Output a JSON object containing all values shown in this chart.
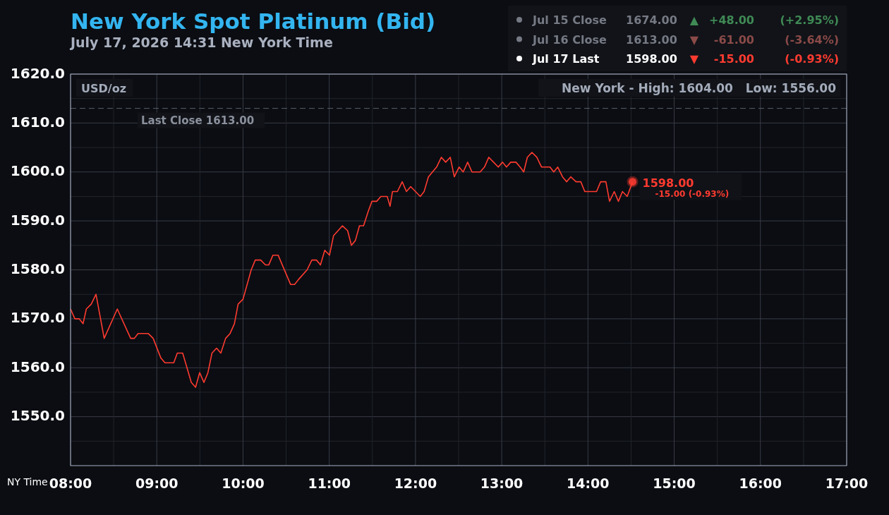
{
  "chart_data": {
    "type": "line",
    "title": "New York Spot Platinum (Bid)",
    "subtitle": "July 17, 2026 14:31 New York Time",
    "xlabel": "NY Time",
    "xlim": [
      8,
      17
    ],
    "xticks": [
      {
        "value": 8,
        "label": "08:00"
      },
      {
        "value": 8.5,
        "label": null
      },
      {
        "value": 9,
        "label": "09:00"
      },
      {
        "value": 9.5,
        "label": null
      },
      {
        "value": 10,
        "label": "10:00"
      },
      {
        "value": 10.5,
        "label": null
      },
      {
        "value": 11,
        "label": "11:00"
      },
      {
        "value": 11.5,
        "label": null
      },
      {
        "value": 12,
        "label": "12:00"
      },
      {
        "value": 12.5,
        "label": null
      },
      {
        "value": 13,
        "label": "13:00"
      },
      {
        "value": 13.5,
        "label": null
      },
      {
        "value": 14,
        "label": "14:00"
      },
      {
        "value": 14.5,
        "label": null
      },
      {
        "value": 15,
        "label": "15:00"
      },
      {
        "value": 15.5,
        "label": null
      },
      {
        "value": 16,
        "label": "16:00"
      },
      {
        "value": 16.5,
        "label": null
      },
      {
        "value": 17,
        "label": "17:00"
      }
    ],
    "ylim": [
      1540,
      1620
    ],
    "yticks": [
      {
        "value": 1545,
        "label": null
      },
      {
        "value": 1550,
        "label": "1550.0"
      },
      {
        "value": 1555,
        "label": null
      },
      {
        "value": 1560,
        "label": "1560.0"
      },
      {
        "value": 1565,
        "label": null
      },
      {
        "value": 1570,
        "label": "1570.0"
      },
      {
        "value": 1575,
        "label": null
      },
      {
        "value": 1580,
        "label": "1580.0"
      },
      {
        "value": 1585,
        "label": null
      },
      {
        "value": 1590,
        "label": "1590.0"
      },
      {
        "value": 1595,
        "label": null
      },
      {
        "value": 1600,
        "label": "1600.0"
      },
      {
        "value": 1605,
        "label": null
      },
      {
        "value": 1610,
        "label": "1610.0"
      },
      {
        "value": 1615,
        "label": null
      },
      {
        "value": 1620,
        "label": "1620.0"
      }
    ],
    "grid": true,
    "marker": "none",
    "line_style": "solid",
    "series": [
      {
        "color": "#ff3b30",
        "x": [
          8.0,
          8.05,
          8.1,
          8.145,
          8.183,
          8.24,
          8.295,
          8.39,
          8.542,
          8.697,
          8.74,
          8.783,
          8.9,
          8.958,
          9.047,
          9.095,
          9.197,
          9.238,
          9.3,
          9.4,
          9.45,
          9.497,
          9.547,
          9.593,
          9.64,
          9.693,
          9.743,
          9.798,
          9.85,
          9.9,
          9.943,
          10.0,
          10.095,
          10.142,
          10.205,
          10.26,
          10.298,
          10.347,
          10.407,
          10.552,
          10.598,
          10.642,
          10.743,
          10.798,
          10.852,
          10.898,
          10.948,
          11.003,
          11.05,
          11.153,
          11.213,
          11.257,
          11.303,
          11.35,
          11.398,
          11.453,
          11.495,
          11.55,
          11.598,
          11.672,
          11.705,
          11.733,
          11.79,
          11.846,
          11.895,
          11.944,
          12.0,
          12.055,
          12.1,
          12.15,
          12.197,
          12.245,
          12.3,
          12.35,
          12.403,
          12.45,
          12.505,
          12.553,
          12.605,
          12.655,
          12.75,
          12.8,
          12.85,
          12.905,
          12.96,
          13.01,
          13.055,
          13.105,
          13.165,
          13.213,
          13.255,
          13.297,
          13.35,
          13.407,
          13.462,
          13.56,
          13.603,
          13.65,
          13.705,
          13.753,
          13.8,
          13.862,
          13.917,
          13.963,
          14.1,
          14.147,
          14.208,
          14.25,
          14.305,
          14.353,
          14.4,
          14.455,
          14.517
        ],
        "values": [
          1572,
          1570,
          1570,
          1569,
          1572,
          1573,
          1575,
          1566,
          1572,
          1566,
          1566,
          1567,
          1567,
          1566,
          1562,
          1561,
          1561,
          1563,
          1563,
          1557,
          1556,
          1559,
          1557,
          1559,
          1563,
          1564,
          1563,
          1566,
          1567,
          1569,
          1573,
          1574,
          1580,
          1582,
          1582,
          1581,
          1581,
          1583,
          1583,
          1577,
          1577,
          1578,
          1580,
          1582,
          1582,
          1581,
          1584,
          1583,
          1587,
          1589,
          1588,
          1585,
          1586,
          1589,
          1589,
          1592,
          1594,
          1594,
          1595,
          1595,
          1593,
          1596,
          1596,
          1598,
          1596,
          1597,
          1596,
          1595,
          1596,
          1599,
          1600,
          1601,
          1603,
          1602,
          1603,
          1599,
          1601,
          1600,
          1602,
          1600,
          1600,
          1601,
          1603,
          1602,
          1601,
          1602,
          1601,
          1602,
          1602,
          1601,
          1600,
          1603,
          1604,
          1603,
          1601,
          1601,
          1600,
          1601,
          1599,
          1598,
          1599,
          1598,
          1598,
          1596,
          1596,
          1598,
          1598,
          1594,
          1596,
          1594,
          1596,
          1595,
          1598
        ]
      }
    ],
    "ref_lines": [
      {
        "axis": "y",
        "value": 1613,
        "label": "Last Close 1613.00",
        "color": "#5a5e68",
        "line_style": "dashed"
      }
    ],
    "annotations": [
      "USD/oz",
      "New York - High: 1604.00   Low: 1556.00",
      {
        "text": "1598.00",
        "x": 14.517,
        "y": 1598
      },
      {
        "text": "-15.00 (-0.93%)",
        "x": 14.517,
        "y": 1598
      },
      "Jul 15 Close",
      "1674.00",
      "▲",
      "+48.00",
      "(+2.95%)",
      "Jul 16 Close",
      "1613.00",
      "▼",
      "-61.00",
      "(-3.64%)",
      "Jul 17 Last",
      "1598.00",
      "▼",
      "-15.00",
      "(-0.93%)"
    ]
  }
}
